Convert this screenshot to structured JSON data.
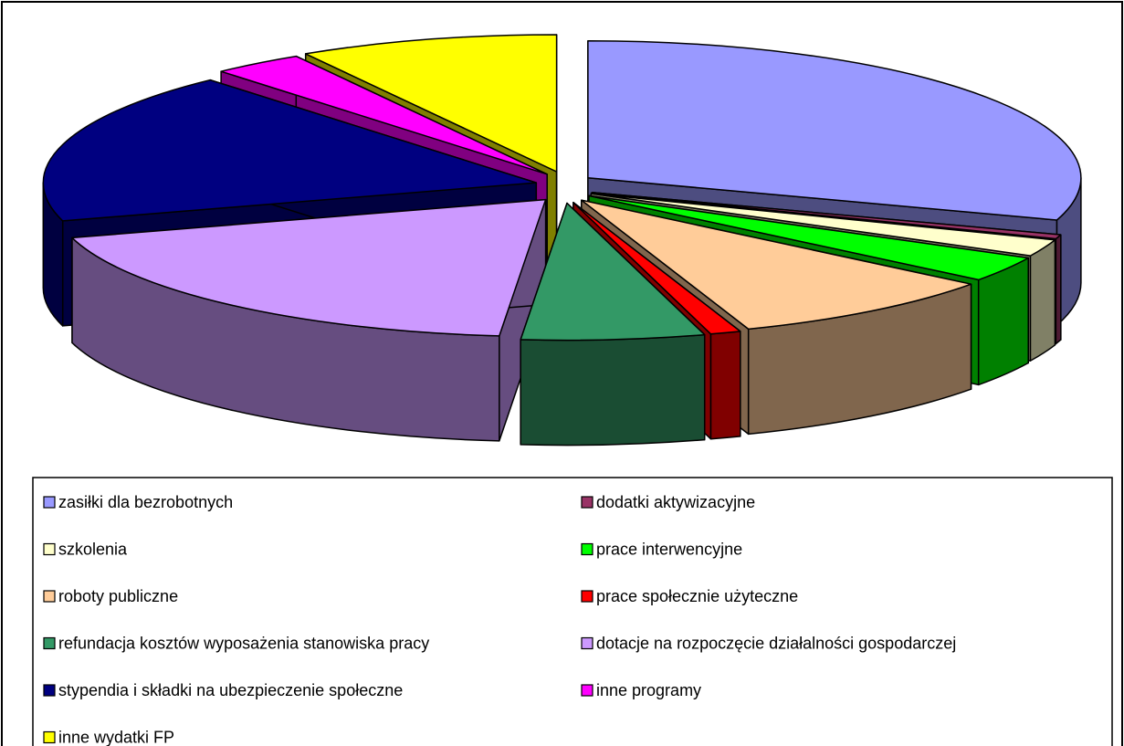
{
  "chart_data": {
    "type": "pie",
    "categories": [
      "zasiłki dla bezrobotnych",
      "dodatki aktywizacyjne",
      "szkolenia",
      "prace interwencyjne",
      "roboty publiczne",
      "prace społecznie użyteczne",
      "refundacja kosztów wyposażenia stanowiska pracy",
      "dotacje na rozpoczęcie działalności gospodarczej",
      "stypendia i składki na ubezpieczenie społeczne",
      "inne programy",
      "inne wydatki FP"
    ],
    "values": [
      30,
      0.5,
      2,
      3,
      9,
      1,
      6,
      19,
      18,
      3,
      8.5
    ],
    "colors": [
      "#9999ff",
      "#993366",
      "#ffffcc",
      "#00ff00",
      "#ffcc99",
      "#ff0000",
      "#339966",
      "#cc99ff",
      "#000080",
      "#ff00ff",
      "#ffff00"
    ],
    "legend": "bottom"
  }
}
